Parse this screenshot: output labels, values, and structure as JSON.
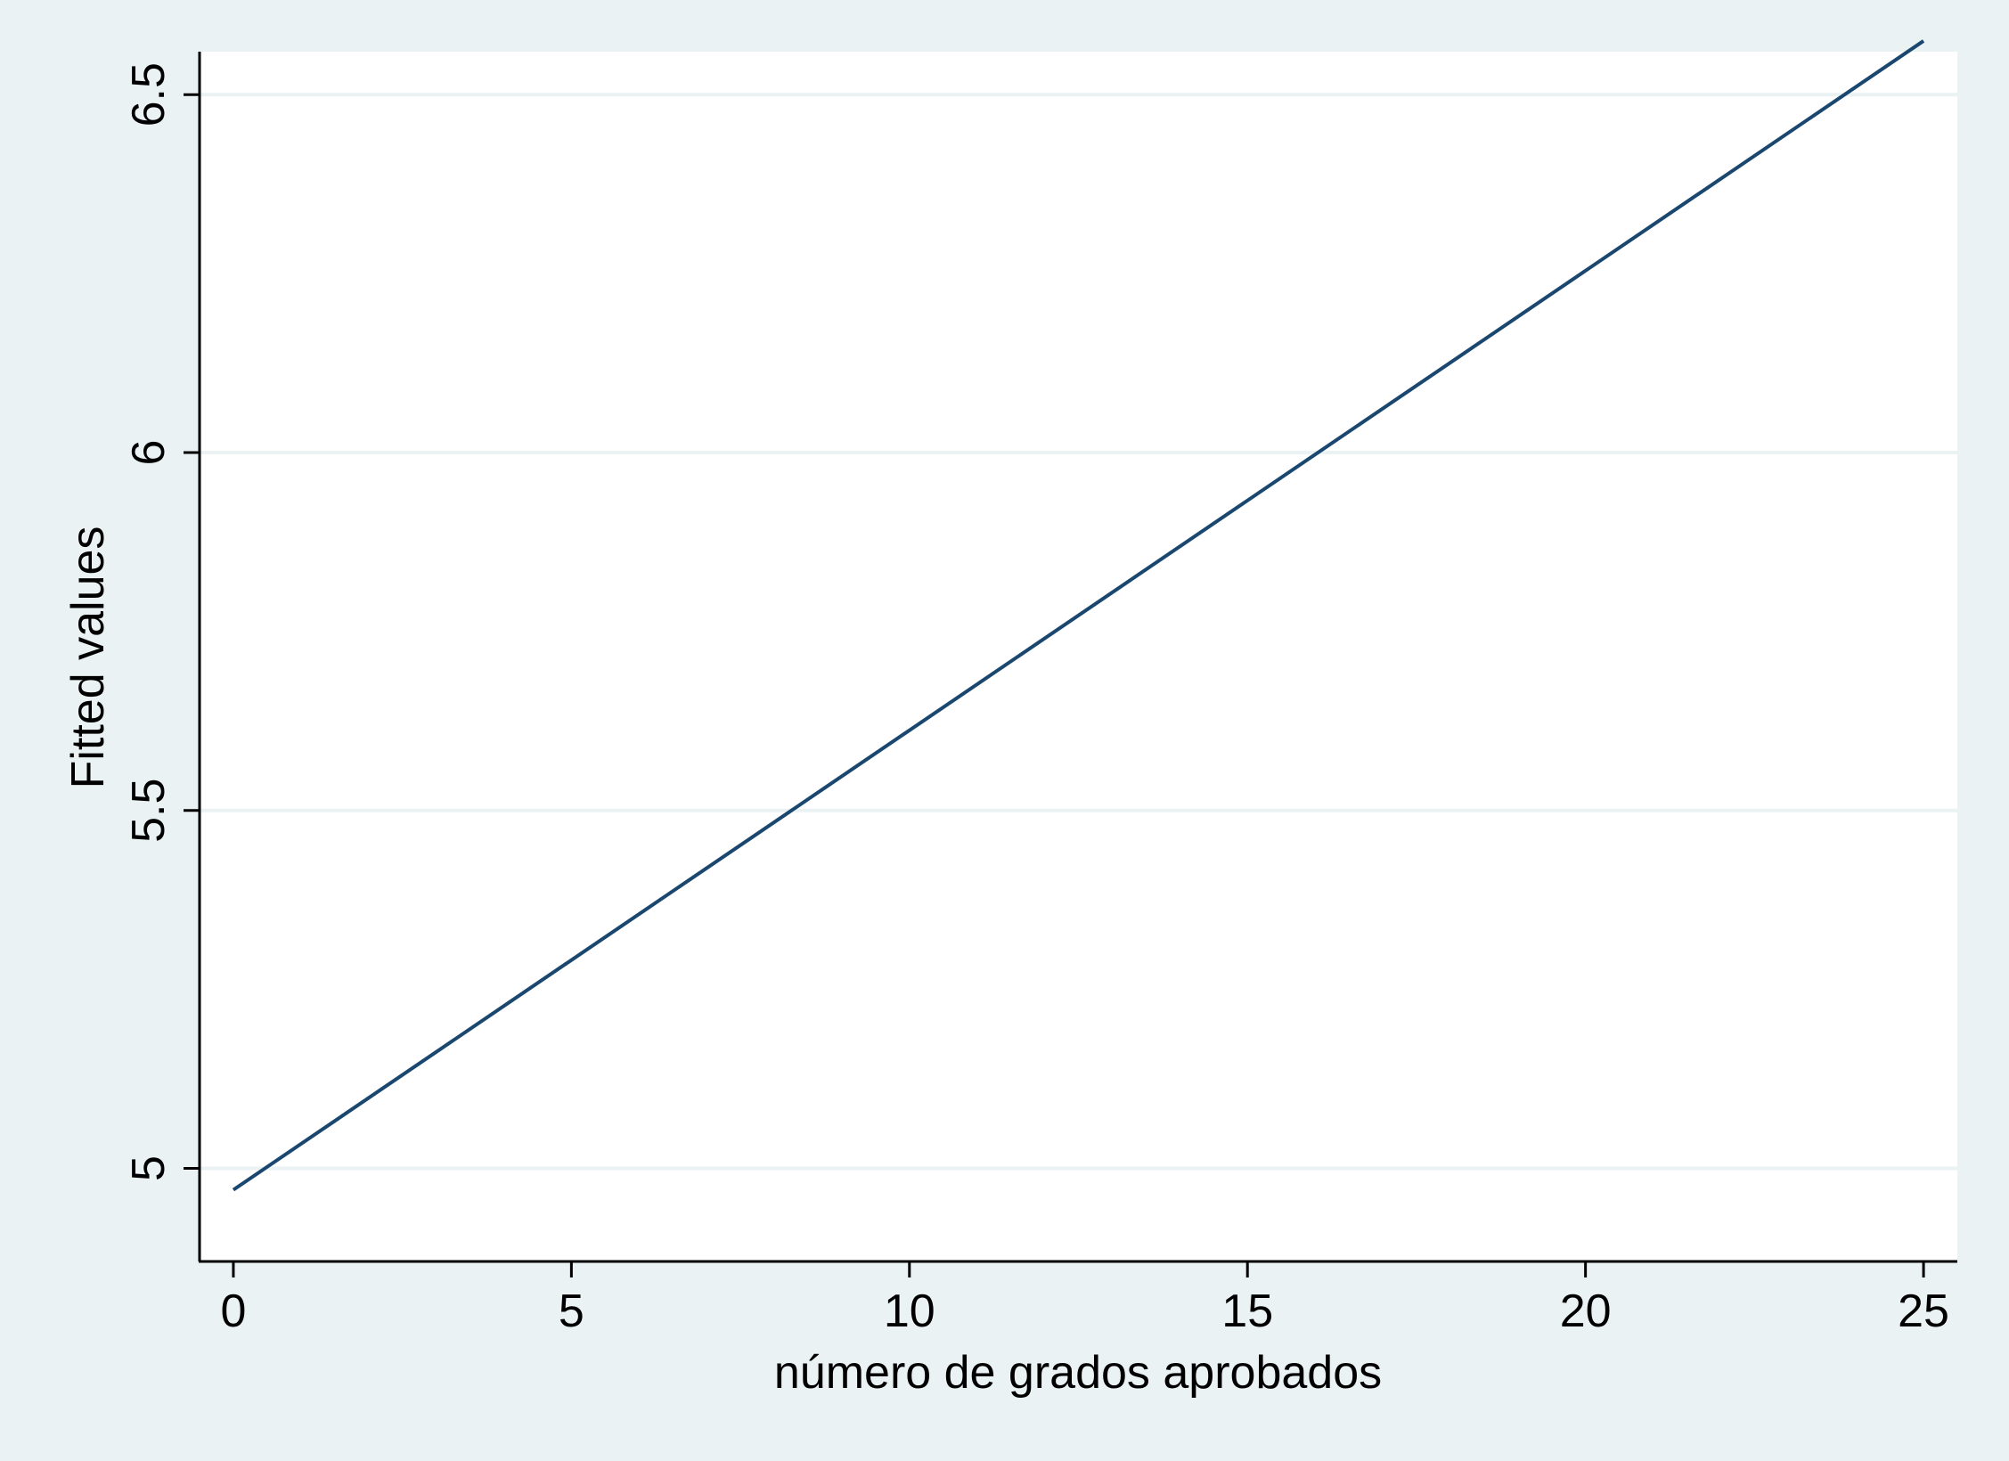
{
  "colors": {
    "background": "#eaf2f3",
    "plot_background": "#ffffff",
    "gridline": "#eaf2f3",
    "line": "#1a476f",
    "axis": "#000000"
  },
  "chart_data": {
    "type": "line",
    "title": "",
    "xlabel": "número de grados aprobados",
    "ylabel": "Fitted values",
    "xlim": [
      -0.5,
      25.5
    ],
    "ylim": [
      4.87,
      6.56
    ],
    "xticks": [
      0,
      5,
      10,
      15,
      20,
      25
    ],
    "xtick_labels": [
      "0",
      "5",
      "10",
      "15",
      "20",
      "25"
    ],
    "yticks": [
      5,
      5.5,
      6,
      6.5
    ],
    "ytick_labels": [
      "5",
      "5.5",
      "6",
      "6.5"
    ],
    "grid": "horizontal",
    "legend": "none",
    "series": [
      {
        "x": [
          0,
          25
        ],
        "y": [
          4.97,
          6.575
        ]
      }
    ]
  }
}
